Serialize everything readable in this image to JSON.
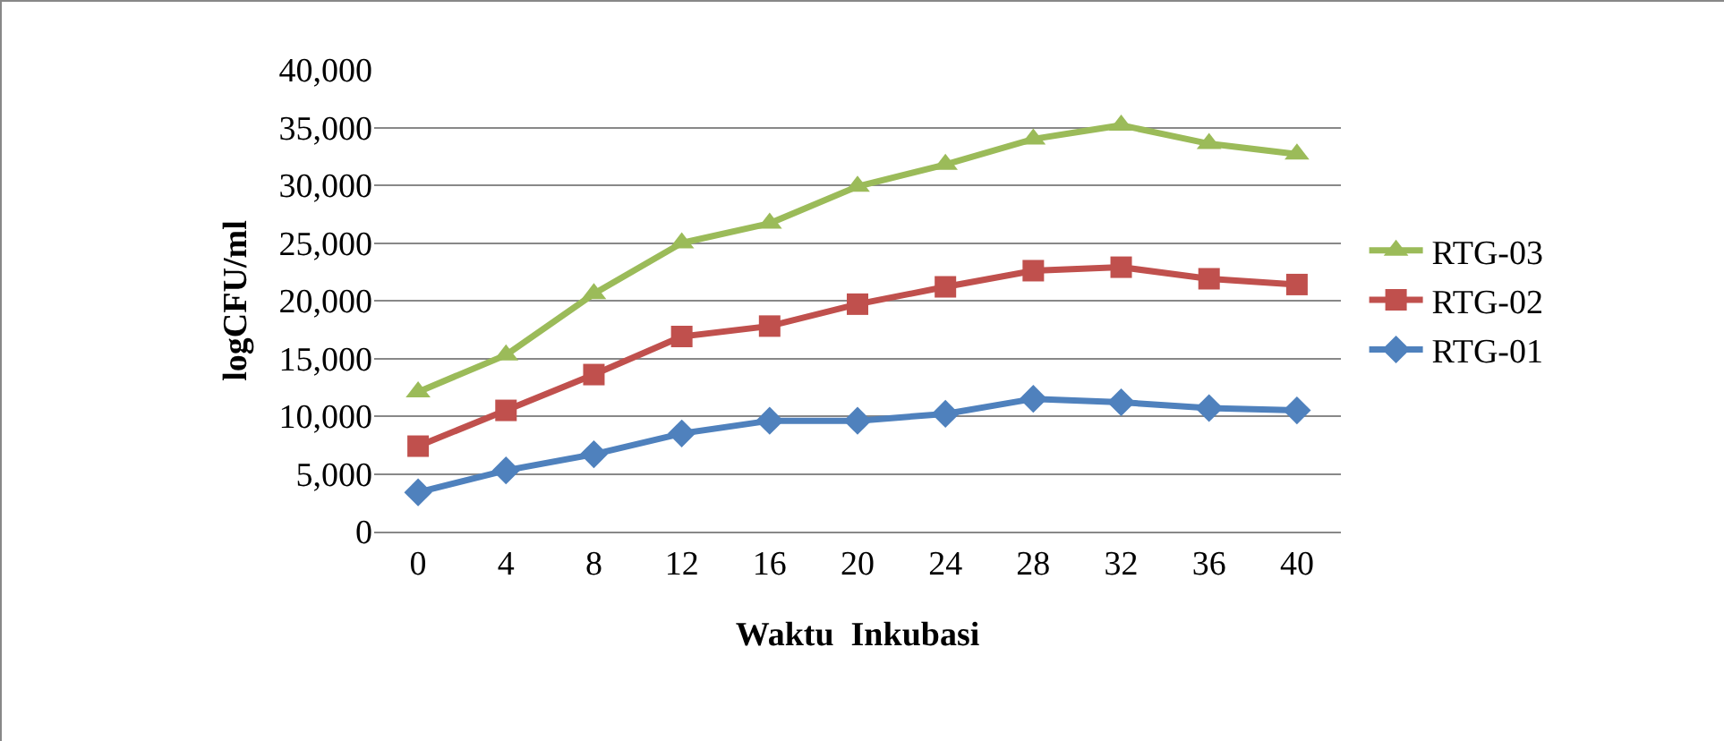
{
  "chart_data": {
    "type": "line",
    "xlabel": "Waktu  Inkubasi",
    "ylabel": "logCFU/ml",
    "categories": [
      "0",
      "4",
      "8",
      "12",
      "16",
      "20",
      "24",
      "28",
      "32",
      "36",
      "40"
    ],
    "series": [
      {
        "name": "RTG-03",
        "color": "#9bbb59",
        "marker": "triangle",
        "values": [
          12100,
          15300,
          20600,
          25000,
          26700,
          29900,
          31800,
          34000,
          35200,
          33600,
          32700
        ]
      },
      {
        "name": "RTG-02",
        "color": "#c0504d",
        "marker": "square",
        "values": [
          7400,
          10500,
          13600,
          16900,
          17800,
          19700,
          21200,
          22600,
          22900,
          21900,
          21400
        ]
      },
      {
        "name": "RTG-01",
        "color": "#4f81bd",
        "marker": "diamond",
        "values": [
          3400,
          5300,
          6700,
          8500,
          9600,
          9600,
          10200,
          11500,
          11200,
          10700,
          10500
        ]
      }
    ],
    "ylim": [
      0,
      40000
    ],
    "yticks": [
      0,
      {
        "value": 5000,
        "label": "5,000"
      },
      {
        "value": 10000,
        "label": "10,000"
      },
      {
        "value": 15000,
        "label": "15,000"
      },
      {
        "value": 20000,
        "label": "20,000"
      },
      {
        "value": 25000,
        "label": "25,000"
      },
      {
        "value": 30000,
        "label": "30,000"
      },
      {
        "value": 35000,
        "label": "35,000"
      },
      {
        "value": 40000,
        "label": "40,000"
      }
    ],
    "grid": "y",
    "legend": "right",
    "line_style": "solid"
  }
}
